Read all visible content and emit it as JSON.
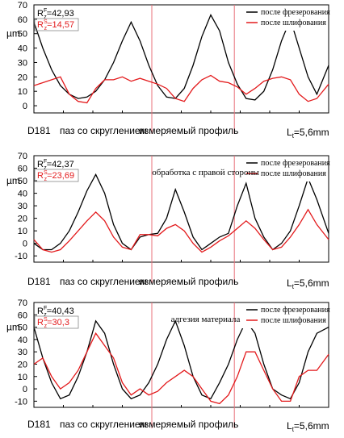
{
  "colors": {
    "series_a": "#000000",
    "series_b": "#e31a1c",
    "marker_line": "#e8707a"
  },
  "chart_data": [
    {
      "type": "line",
      "ylabel": "µm",
      "ylim": [
        -5,
        70
      ],
      "yticks": [
        0,
        10,
        20,
        30,
        40,
        50,
        60,
        70
      ],
      "grid": false,
      "legend": "top-right",
      "annotation": "",
      "rz_labels": [
        {
          "sup": "F",
          "text": "=42,93",
          "color": "#000000"
        },
        {
          "sup": "S",
          "text": "=14,57",
          "color": "#e31a1c"
        }
      ],
      "caption": {
        "left": "D181",
        "middle": "паз со скруглением",
        "right": "измеряемый профиль",
        "length": "=5,6mm",
        "length_sub": "t",
        "length_prefix": "L"
      },
      "markers": [
        0.4,
        0.68
      ],
      "series": [
        {
          "name": "после фрезерования",
          "color": "#000000",
          "x": [
            0,
            0.03,
            0.06,
            0.09,
            0.12,
            0.15,
            0.18,
            0.21,
            0.24,
            0.27,
            0.3,
            0.33,
            0.36,
            0.39,
            0.42,
            0.45,
            0.48,
            0.51,
            0.54,
            0.57,
            0.6,
            0.63,
            0.66,
            0.69,
            0.72,
            0.75,
            0.78,
            0.81,
            0.84,
            0.87,
            0.9,
            0.93,
            0.96,
            1.0
          ],
          "y": [
            58,
            40,
            25,
            14,
            8,
            5,
            6,
            10,
            18,
            30,
            45,
            58,
            45,
            28,
            14,
            6,
            5,
            12,
            28,
            48,
            63,
            52,
            30,
            15,
            5,
            4,
            10,
            25,
            45,
            60,
            40,
            20,
            8,
            28
          ]
        },
        {
          "name": "после шлифования",
          "color": "#e31a1c",
          "x": [
            0,
            0.03,
            0.06,
            0.09,
            0.12,
            0.15,
            0.18,
            0.21,
            0.24,
            0.27,
            0.3,
            0.33,
            0.36,
            0.39,
            0.42,
            0.45,
            0.48,
            0.51,
            0.54,
            0.57,
            0.6,
            0.63,
            0.66,
            0.69,
            0.72,
            0.75,
            0.78,
            0.81,
            0.84,
            0.87,
            0.9,
            0.93,
            0.96,
            1.0
          ],
          "y": [
            14,
            16,
            18,
            20,
            8,
            3,
            2,
            12,
            18,
            18,
            20,
            17,
            19,
            17,
            15,
            12,
            5,
            3,
            12,
            18,
            21,
            17,
            16,
            13,
            8,
            12,
            17,
            19,
            20,
            18,
            8,
            3,
            5,
            15
          ]
        }
      ]
    },
    {
      "type": "line",
      "ylabel": "µm",
      "ylim": [
        -15,
        70
      ],
      "yticks": [
        -10,
        0,
        10,
        20,
        30,
        40,
        50,
        60,
        70
      ],
      "grid": false,
      "legend": "top-right",
      "annotation": "обработка с правой стороны",
      "rz_labels": [
        {
          "sup": "F",
          "text": "=42,37",
          "color": "#000000"
        },
        {
          "sup": "S",
          "text": "=23,69",
          "color": "#e31a1c"
        }
      ],
      "caption": {
        "left": "D181",
        "middle": "паз со скруглением",
        "right": "измеряемый профиль",
        "length": "=5,6mm",
        "length_sub": "t",
        "length_prefix": "L"
      },
      "markers": [
        0.4,
        0.68
      ],
      "series": [
        {
          "name": "после фрезерования",
          "color": "#000000",
          "x": [
            0,
            0.03,
            0.06,
            0.09,
            0.12,
            0.15,
            0.18,
            0.21,
            0.24,
            0.27,
            0.3,
            0.33,
            0.36,
            0.39,
            0.42,
            0.45,
            0.48,
            0.51,
            0.54,
            0.57,
            0.6,
            0.63,
            0.66,
            0.69,
            0.72,
            0.75,
            0.78,
            0.81,
            0.84,
            0.87,
            0.9,
            0.93,
            0.96,
            1.0
          ],
          "y": [
            0,
            -5,
            -5,
            0,
            10,
            25,
            42,
            55,
            40,
            15,
            0,
            -5,
            5,
            7,
            8,
            20,
            43,
            25,
            5,
            -5,
            0,
            5,
            8,
            30,
            48,
            20,
            5,
            -5,
            0,
            10,
            30,
            52,
            35,
            8
          ]
        },
        {
          "name": "после шлифования",
          "color": "#e31a1c",
          "x": [
            0,
            0.03,
            0.06,
            0.09,
            0.12,
            0.15,
            0.18,
            0.21,
            0.24,
            0.27,
            0.3,
            0.33,
            0.36,
            0.39,
            0.42,
            0.45,
            0.48,
            0.51,
            0.54,
            0.57,
            0.6,
            0.63,
            0.66,
            0.69,
            0.72,
            0.75,
            0.78,
            0.81,
            0.84,
            0.87,
            0.9,
            0.93,
            0.96,
            1.0
          ],
          "y": [
            3,
            -5,
            -7,
            -5,
            2,
            10,
            18,
            25,
            18,
            5,
            -3,
            -5,
            7,
            7,
            6,
            12,
            15,
            10,
            0,
            -7,
            -3,
            2,
            6,
            12,
            18,
            12,
            3,
            -5,
            -3,
            5,
            15,
            27,
            15,
            3
          ]
        }
      ]
    },
    {
      "type": "line",
      "ylabel": "µm",
      "ylim": [
        -15,
        70
      ],
      "yticks": [
        -10,
        0,
        10,
        20,
        30,
        40,
        50,
        60,
        70
      ],
      "grid": false,
      "legend": "top-right",
      "annotation": "адгезия материала",
      "rz_labels": [
        {
          "sup": "F",
          "text": "=40,43",
          "color": "#000000"
        },
        {
          "sup": "S",
          "text": "=30,3",
          "color": "#e31a1c"
        }
      ],
      "caption": {
        "left": "D181",
        "middle": "паз со скруглением",
        "right": "измеряемый профиль",
        "length": "=5,6mm",
        "length_sub": "t",
        "length_prefix": "L"
      },
      "markers": [
        0.4,
        0.68
      ],
      "series": [
        {
          "name": "после фрезерования",
          "color": "#000000",
          "x": [
            0,
            0.03,
            0.06,
            0.09,
            0.12,
            0.15,
            0.18,
            0.21,
            0.24,
            0.27,
            0.3,
            0.33,
            0.36,
            0.39,
            0.42,
            0.45,
            0.48,
            0.51,
            0.54,
            0.57,
            0.6,
            0.63,
            0.66,
            0.69,
            0.72,
            0.75,
            0.78,
            0.81,
            0.84,
            0.87,
            0.9,
            0.93,
            0.96,
            1.0
          ],
          "y": [
            50,
            25,
            5,
            -8,
            -5,
            10,
            30,
            55,
            45,
            20,
            0,
            -8,
            -5,
            5,
            20,
            40,
            55,
            35,
            10,
            -5,
            -8,
            5,
            20,
            40,
            55,
            45,
            20,
            0,
            -5,
            -8,
            5,
            30,
            45,
            50
          ]
        },
        {
          "name": "после шлифования",
          "color": "#e31a1c",
          "x": [
            0,
            0.03,
            0.06,
            0.09,
            0.12,
            0.15,
            0.18,
            0.21,
            0.24,
            0.27,
            0.3,
            0.33,
            0.36,
            0.39,
            0.42,
            0.45,
            0.48,
            0.51,
            0.54,
            0.57,
            0.6,
            0.63,
            0.66,
            0.69,
            0.72,
            0.75,
            0.78,
            0.81,
            0.84,
            0.87,
            0.9,
            0.93,
            0.96,
            1.0
          ],
          "y": [
            20,
            25,
            10,
            0,
            5,
            15,
            30,
            45,
            35,
            25,
            5,
            -5,
            0,
            -5,
            -2,
            5,
            10,
            15,
            10,
            0,
            -10,
            -12,
            -5,
            10,
            30,
            30,
            15,
            0,
            -10,
            -10,
            10,
            15,
            15,
            28
          ]
        }
      ]
    }
  ]
}
